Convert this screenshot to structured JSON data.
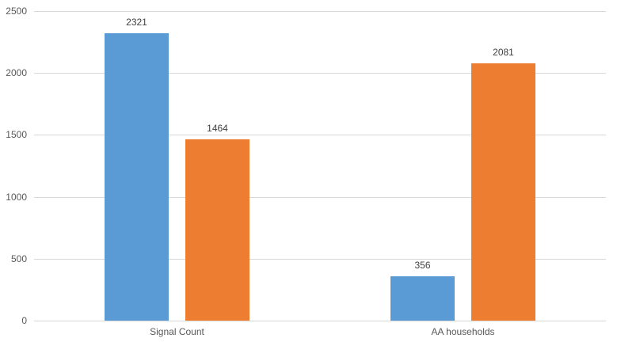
{
  "chart_data": {
    "type": "bar",
    "title": "",
    "xlabel": "",
    "ylabel": "",
    "categories": [
      "Signal Count",
      "AA households"
    ],
    "series": [
      {
        "color": "#5B9BD5",
        "values": [
          2321,
          356
        ]
      },
      {
        "color": "#ED7D31",
        "values": [
          1464,
          2081
        ]
      }
    ],
    "data_labels": [
      [
        "2321",
        "356"
      ],
      [
        "1464",
        "2081"
      ]
    ],
    "yticks": [
      "0",
      "500",
      "1000",
      "1500",
      "2000",
      "2500"
    ],
    "ytick_values": [
      0,
      500,
      1000,
      1500,
      2000,
      2500
    ],
    "ylim": [
      0,
      2500
    ],
    "grid": true,
    "legend": "none",
    "colors": {
      "series_blue": "#5B9BD5",
      "series_orange": "#ED7D31",
      "gridline": "#D9D9D9",
      "axis_line": "#D9D9D9",
      "axis_text": "#595959",
      "data_label_text": "#404040"
    }
  }
}
